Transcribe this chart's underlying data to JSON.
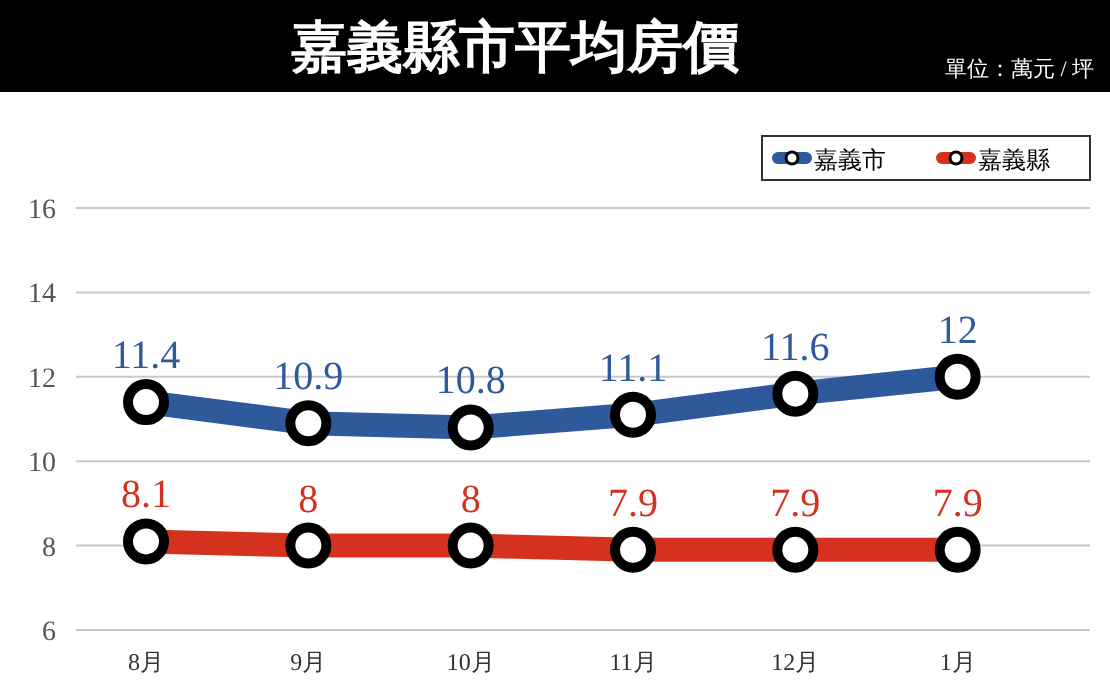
{
  "chart_data": {
    "type": "line",
    "title": "嘉義縣市平均房價",
    "annotations": [
      "單位：萬元 / 坪"
    ],
    "categories": [
      "8月",
      "9月",
      "10月",
      "11月",
      "12月",
      "1月"
    ],
    "series": [
      {
        "name": "嘉義市",
        "color": "#2e5a9c",
        "values": [
          11.4,
          10.9,
          10.8,
          11.1,
          11.6,
          12
        ]
      },
      {
        "name": "嘉義縣",
        "color": "#d4321e",
        "values": [
          8.1,
          8,
          8,
          7.9,
          7.9,
          7.9
        ]
      }
    ],
    "ylim": [
      6,
      16
    ],
    "yticks": [
      6,
      8,
      10,
      12,
      14,
      16
    ],
    "grid": "y",
    "legend": "top right",
    "marker": "circle",
    "line_style": "solid",
    "data_labels": true
  }
}
